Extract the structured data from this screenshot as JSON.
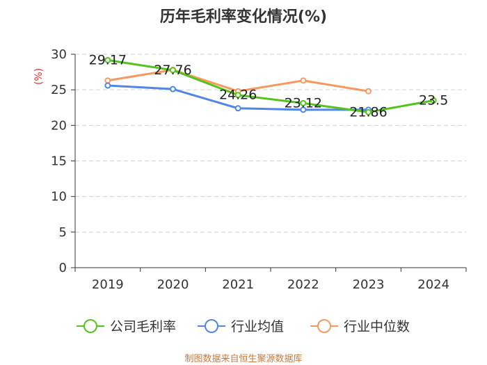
{
  "chart_data": {
    "type": "line",
    "title": "历年毛利率变化情况(%)",
    "ylabel": "(%)",
    "xlabel": "",
    "ylim": [
      0,
      30
    ],
    "yticks": [
      0,
      5,
      10,
      15,
      20,
      25,
      30
    ],
    "categories": [
      "2019",
      "2020",
      "2021",
      "2022",
      "2023",
      "2024"
    ],
    "grid": true,
    "legend_position": "bottom",
    "series": [
      {
        "name": "公司毛利率",
        "color": "#52c41a",
        "values": [
          29.17,
          27.76,
          24.26,
          23.12,
          21.86,
          23.5
        ],
        "labels": [
          "29.17",
          "27.76",
          "24.26",
          "23.12",
          "21.86",
          "23.5"
        ],
        "show_labels": true
      },
      {
        "name": "行业均值",
        "color": "#4f86e8",
        "values": [
          25.6,
          25.1,
          22.4,
          22.2,
          22.2,
          null
        ],
        "show_labels": false
      },
      {
        "name": "行业中位数",
        "color": "#f7995f",
        "values": [
          26.3,
          27.8,
          24.8,
          26.3,
          24.8,
          null
        ],
        "show_labels": false
      }
    ]
  },
  "source": "制图数据来自恒生聚源数据库"
}
